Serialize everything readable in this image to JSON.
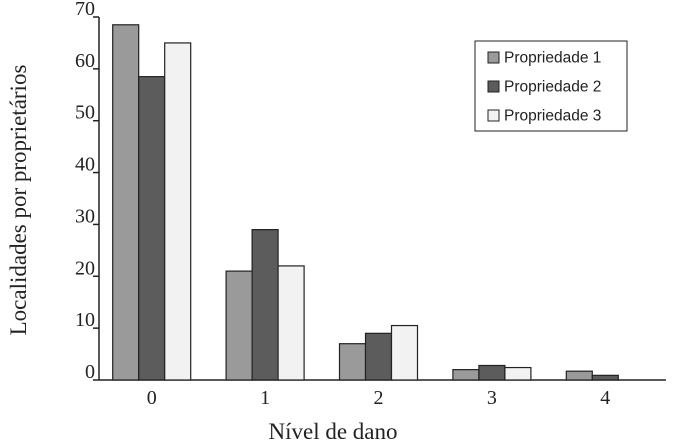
{
  "chart_data": {
    "type": "bar",
    "xlabel": "Nível de dano",
    "ylabel": "Localidades por proprietários",
    "categories": [
      "0",
      "1",
      "2",
      "3",
      "4"
    ],
    "ylim": [
      0,
      70
    ],
    "yticks": [
      "0",
      "10",
      "20",
      "30",
      "40",
      "50",
      "60",
      "70"
    ],
    "grid": false,
    "legend_position": "top-right",
    "series": [
      {
        "name": "Propriedade 1",
        "color": "#9a9a9a",
        "values": [
          68.5,
          21,
          7,
          2,
          1.7
        ]
      },
      {
        "name": "Propriedade 2",
        "color": "#5c5c5c",
        "values": [
          58.5,
          29,
          9,
          2.8,
          0.9
        ]
      },
      {
        "name": "Propriedade 3",
        "color": "#f2f2f2",
        "values": [
          65,
          22,
          10.5,
          2.4,
          0
        ]
      }
    ]
  }
}
